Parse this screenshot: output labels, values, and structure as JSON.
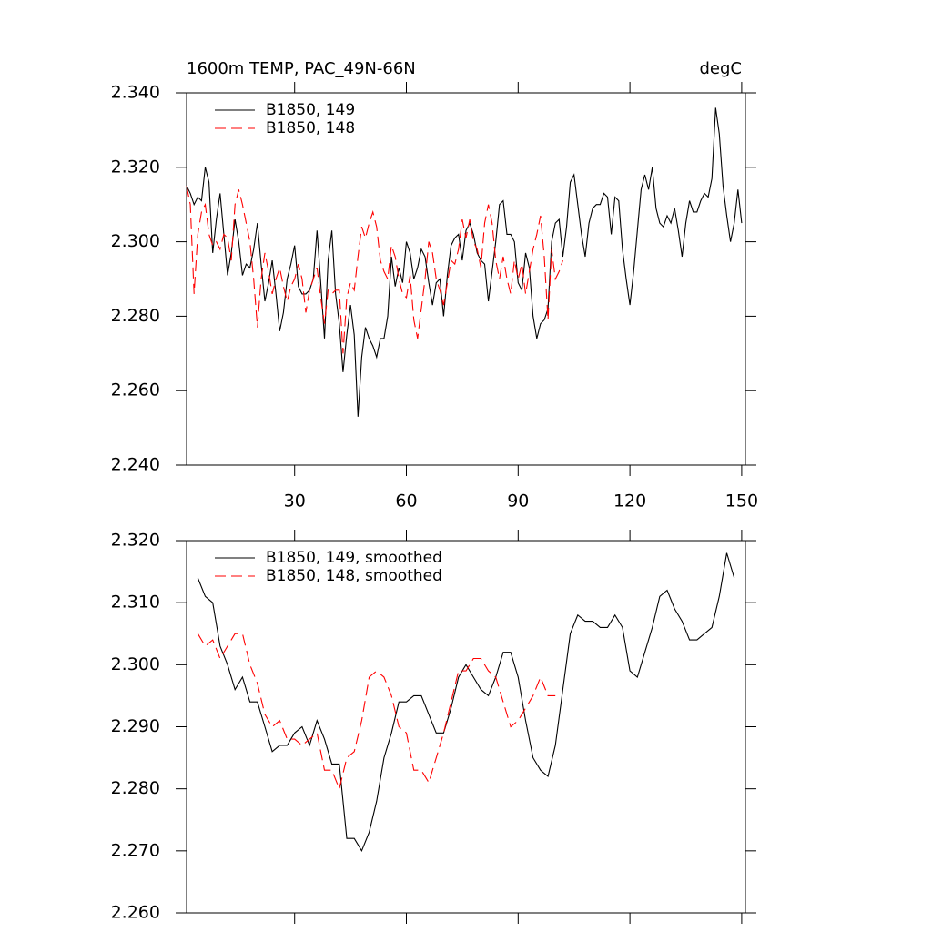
{
  "chart_data": [
    {
      "type": "line",
      "title": "1600m TEMP, PAC_49N-66N",
      "units": "degC",
      "xlim": [
        1,
        151
      ],
      "xticks": [
        30,
        60,
        90,
        120,
        150
      ],
      "xtick_labels": true,
      "ylim": [
        2.24,
        2.34
      ],
      "yticks": [
        {
          "value": 2.24,
          "label": "2.240"
        },
        {
          "value": 2.26,
          "label": "2.260"
        },
        {
          "value": 2.28,
          "label": "2.280"
        },
        {
          "value": 2.3,
          "label": "2.300"
        },
        {
          "value": 2.32,
          "label": "2.320"
        },
        {
          "value": 2.34,
          "label": "2.340"
        }
      ],
      "legend": "upper left",
      "series": [
        {
          "name": "B1850, 149",
          "color": "#000000",
          "dash": false,
          "x": [
            1,
            2,
            3,
            4,
            5,
            6,
            7,
            8,
            9,
            10,
            11,
            12,
            13,
            14,
            15,
            16,
            17,
            18,
            19,
            20,
            21,
            22,
            23,
            24,
            25,
            26,
            27,
            28,
            29,
            30,
            31,
            32,
            33,
            34,
            35,
            36,
            37,
            38,
            39,
            40,
            41,
            42,
            43,
            44,
            45,
            46,
            47,
            48,
            49,
            50,
            51,
            52,
            53,
            54,
            55,
            56,
            57,
            58,
            59,
            60,
            61,
            62,
            63,
            64,
            65,
            66,
            67,
            68,
            69,
            70,
            71,
            72,
            73,
            74,
            75,
            76,
            77,
            78,
            79,
            80,
            81,
            82,
            83,
            84,
            85,
            86,
            87,
            88,
            89,
            90,
            91,
            92,
            93,
            94,
            95,
            96,
            97,
            98,
            99,
            100,
            101,
            102,
            103,
            104,
            105,
            106,
            107,
            108,
            109,
            110,
            111,
            112,
            113,
            114,
            115,
            116,
            117,
            118,
            119,
            120,
            121,
            122,
            123,
            124,
            125,
            126,
            127,
            128,
            129,
            130,
            131,
            132,
            133,
            134,
            135,
            136,
            137,
            138,
            139,
            140,
            141,
            142,
            143,
            144,
            145,
            146,
            147,
            148,
            149,
            150
          ],
          "values": [
            2.315,
            2.313,
            2.31,
            2.312,
            2.311,
            2.32,
            2.316,
            2.297,
            2.306,
            2.313,
            2.302,
            2.291,
            2.297,
            2.306,
            2.3,
            2.291,
            2.294,
            2.293,
            2.298,
            2.305,
            2.294,
            2.284,
            2.289,
            2.295,
            2.286,
            2.276,
            2.281,
            2.29,
            2.294,
            2.299,
            2.288,
            2.286,
            2.286,
            2.287,
            2.29,
            2.303,
            2.289,
            2.274,
            2.295,
            2.303,
            2.286,
            2.278,
            2.265,
            2.275,
            2.283,
            2.275,
            2.253,
            2.269,
            2.277,
            2.274,
            2.272,
            2.269,
            2.274,
            2.274,
            2.28,
            2.296,
            2.288,
            2.293,
            2.289,
            2.3,
            2.297,
            2.29,
            2.293,
            2.298,
            2.296,
            2.289,
            2.283,
            2.289,
            2.29,
            2.28,
            2.291,
            2.299,
            2.301,
            2.302,
            2.295,
            2.303,
            2.305,
            2.302,
            2.297,
            2.295,
            2.294,
            2.284,
            2.292,
            2.3,
            2.31,
            2.311,
            2.302,
            2.302,
            2.3,
            2.289,
            2.287,
            2.297,
            2.293,
            2.28,
            2.274,
            2.278,
            2.279,
            2.282,
            2.3,
            2.305,
            2.306,
            2.296,
            2.304,
            2.316,
            2.318,
            2.31,
            2.302,
            2.296,
            2.305,
            2.309,
            2.31,
            2.31,
            2.313,
            2.312,
            2.302,
            2.312,
            2.311,
            2.298,
            2.29,
            2.283,
            2.292,
            2.303,
            2.314,
            2.318,
            2.314,
            2.32,
            2.309,
            2.305,
            2.304,
            2.307,
            2.305,
            2.309,
            2.303,
            2.296,
            2.305,
            2.311,
            2.308,
            2.308,
            2.311,
            2.313,
            2.312,
            2.317,
            2.336,
            2.329,
            2.315,
            2.307,
            2.3,
            2.305,
            2.314,
            2.305
          ]
        },
        {
          "name": "B1850, 148",
          "color": "#ff0000",
          "dash": true,
          "x": [
            1,
            2,
            3,
            4,
            5,
            6,
            7,
            8,
            9,
            10,
            11,
            12,
            13,
            14,
            15,
            16,
            17,
            18,
            19,
            20,
            21,
            22,
            23,
            24,
            25,
            26,
            27,
            28,
            29,
            30,
            31,
            32,
            33,
            34,
            35,
            36,
            37,
            38,
            39,
            40,
            41,
            42,
            43,
            44,
            45,
            46,
            47,
            48,
            49,
            50,
            51,
            52,
            53,
            54,
            55,
            56,
            57,
            58,
            59,
            60,
            61,
            62,
            63,
            64,
            65,
            66,
            67,
            68,
            69,
            70,
            71,
            72,
            73,
            74,
            75,
            76,
            77,
            78,
            79,
            80,
            81,
            82,
            83,
            84,
            85,
            86,
            87,
            88,
            89,
            90,
            91,
            92,
            93,
            94,
            95,
            96,
            97,
            98,
            99,
            100,
            101,
            102
          ],
          "values": [
            2.315,
            2.31,
            2.286,
            2.302,
            2.308,
            2.31,
            2.302,
            2.299,
            2.3,
            2.298,
            2.302,
            2.301,
            2.295,
            2.31,
            2.314,
            2.31,
            2.305,
            2.3,
            2.29,
            2.277,
            2.29,
            2.297,
            2.292,
            2.286,
            2.29,
            2.293,
            2.288,
            2.284,
            2.288,
            2.29,
            2.294,
            2.29,
            2.281,
            2.287,
            2.29,
            2.293,
            2.285,
            2.278,
            2.287,
            2.286,
            2.287,
            2.287,
            2.27,
            2.285,
            2.289,
            2.287,
            2.296,
            2.304,
            2.301,
            2.305,
            2.308,
            2.304,
            2.295,
            2.292,
            2.29,
            2.299,
            2.296,
            2.29,
            2.286,
            2.285,
            2.291,
            2.279,
            2.274,
            2.282,
            2.29,
            2.3,
            2.297,
            2.29,
            2.287,
            2.283,
            2.289,
            2.295,
            2.294,
            2.298,
            2.306,
            2.301,
            2.306,
            2.3,
            2.298,
            2.293,
            2.305,
            2.31,
            2.305,
            2.295,
            2.29,
            2.296,
            2.29,
            2.286,
            2.295,
            2.29,
            2.294,
            2.286,
            2.292,
            2.298,
            2.302,
            2.307,
            2.296,
            2.279,
            2.298,
            2.29,
            2.292,
            2.295
          ]
        }
      ]
    },
    {
      "type": "line",
      "xlim": [
        1,
        151
      ],
      "xticks": [
        30,
        60,
        90,
        120,
        150
      ],
      "xtick_labels": false,
      "ylim": [
        2.26,
        2.32
      ],
      "yticks": [
        {
          "value": 2.26,
          "label": "2.260"
        },
        {
          "value": 2.27,
          "label": "2.270"
        },
        {
          "value": 2.28,
          "label": "2.280"
        },
        {
          "value": 2.29,
          "label": "2.290"
        },
        {
          "value": 2.3,
          "label": "2.300"
        },
        {
          "value": 2.31,
          "label": "2.310"
        },
        {
          "value": 2.32,
          "label": "2.320"
        }
      ],
      "legend": "upper left",
      "series": [
        {
          "name": "B1850, 149, smoothed",
          "color": "#000000",
          "dash": false,
          "x": [
            4,
            6,
            8,
            10,
            12,
            14,
            16,
            18,
            20,
            22,
            24,
            26,
            28,
            30,
            32,
            34,
            36,
            38,
            40,
            42,
            44,
            46,
            48,
            50,
            52,
            54,
            56,
            58,
            60,
            62,
            64,
            66,
            68,
            70,
            72,
            74,
            76,
            78,
            80,
            82,
            84,
            86,
            88,
            90,
            92,
            94,
            96,
            98,
            100,
            102,
            104,
            106,
            108,
            110,
            112,
            114,
            116,
            118,
            120,
            122,
            124,
            126,
            128,
            130,
            132,
            134,
            136,
            138,
            140,
            142,
            144,
            146,
            148
          ],
          "values": [
            2.314,
            2.311,
            2.31,
            2.303,
            2.3,
            2.296,
            2.298,
            2.294,
            2.294,
            2.29,
            2.286,
            2.287,
            2.287,
            2.289,
            2.29,
            2.287,
            2.291,
            2.288,
            2.284,
            2.284,
            2.272,
            2.272,
            2.27,
            2.273,
            2.278,
            2.285,
            2.289,
            2.294,
            2.294,
            2.295,
            2.295,
            2.292,
            2.289,
            2.289,
            2.293,
            2.298,
            2.3,
            2.298,
            2.296,
            2.295,
            2.298,
            2.302,
            2.302,
            2.298,
            2.291,
            2.285,
            2.283,
            2.282,
            2.287,
            2.296,
            2.305,
            2.308,
            2.307,
            2.307,
            2.306,
            2.306,
            2.308,
            2.306,
            2.299,
            2.298,
            2.302,
            2.306,
            2.311,
            2.312,
            2.309,
            2.307,
            2.304,
            2.304,
            2.305,
            2.306,
            2.311,
            2.318,
            2.314
          ]
        },
        {
          "name": "B1850, 148, smoothed",
          "color": "#ff0000",
          "dash": true,
          "x": [
            4,
            6,
            8,
            10,
            12,
            14,
            16,
            18,
            20,
            22,
            24,
            26,
            28,
            30,
            32,
            34,
            36,
            38,
            40,
            42,
            44,
            46,
            48,
            50,
            52,
            54,
            56,
            58,
            60,
            62,
            64,
            66,
            68,
            70,
            72,
            74,
            76,
            78,
            80,
            82,
            84,
            86,
            88,
            90,
            92,
            94,
            96,
            98,
            100
          ],
          "values": [
            2.305,
            2.303,
            2.304,
            2.301,
            2.303,
            2.305,
            2.305,
            2.3,
            2.297,
            2.292,
            2.29,
            2.291,
            2.288,
            2.288,
            2.287,
            2.288,
            2.289,
            2.283,
            2.283,
            2.28,
            2.285,
            2.286,
            2.291,
            2.298,
            2.299,
            2.298,
            2.295,
            2.29,
            2.289,
            2.283,
            2.283,
            2.281,
            2.285,
            2.289,
            2.294,
            2.299,
            2.299,
            2.301,
            2.301,
            2.299,
            2.298,
            2.294,
            2.29,
            2.291,
            2.293,
            2.295,
            2.298,
            2.295,
            2.295
          ]
        }
      ]
    }
  ]
}
